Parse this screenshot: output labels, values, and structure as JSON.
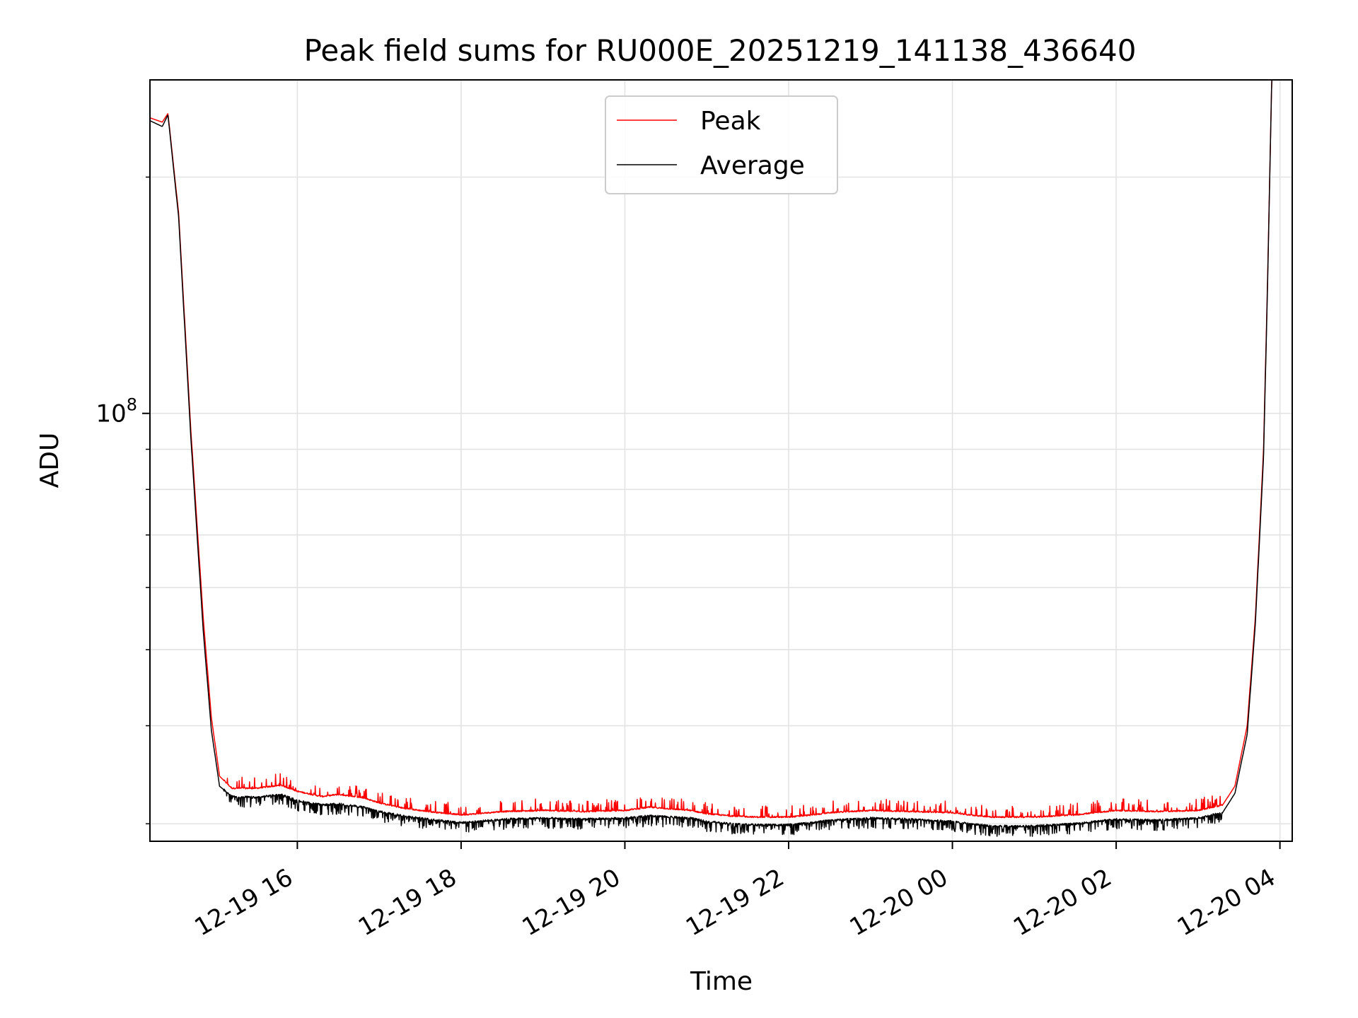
{
  "chart_data": {
    "type": "line",
    "title": "Peak field sums for RU000E_20251219_141138_436640",
    "xlabel": "Time",
    "ylabel": "ADU",
    "yscale": "log",
    "ylim": [
      28500000,
      266000000
    ],
    "xlim_hours": [
      14.2,
      28.15
    ],
    "x_ticks": [
      {
        "label": "12-19 16",
        "hour": 16
      },
      {
        "label": "12-19 18",
        "hour": 18
      },
      {
        "label": "12-19 20",
        "hour": 20
      },
      {
        "label": "12-19 22",
        "hour": 22
      },
      {
        "label": "12-20 00",
        "hour": 24
      },
      {
        "label": "12-20 02",
        "hour": 26
      },
      {
        "label": "12-20 04",
        "hour": 28
      }
    ],
    "y_major_tick": {
      "base": "10",
      "exp": "8",
      "value": 100000000
    },
    "y_minor_ticks": [
      30000000,
      40000000,
      50000000,
      60000000,
      70000000,
      80000000,
      90000000,
      200000000
    ],
    "grid": true,
    "legend_position": "upper-center",
    "series": [
      {
        "name": "Peak",
        "color": "#ff0000",
        "hours": [
          14.2,
          14.35,
          14.42,
          14.55,
          14.7,
          14.85,
          14.95,
          15.05,
          15.2,
          15.5,
          15.8,
          16.0,
          16.3,
          16.5,
          16.8,
          17.0,
          17.3,
          17.6,
          18.0,
          18.2,
          18.5,
          19.0,
          19.5,
          20.0,
          20.3,
          20.8,
          21.0,
          21.3,
          21.6,
          22.0,
          22.3,
          22.5,
          23.0,
          23.5,
          24.0,
          24.2,
          24.5,
          25.0,
          25.5,
          26.0,
          26.5,
          27.0,
          27.3,
          27.45,
          27.6,
          27.7,
          27.8,
          27.85,
          27.9
        ],
        "values": [
          238000000,
          235000000,
          241000000,
          180000000,
          95000000,
          55000000,
          41000000,
          34500000,
          33300000,
          33300000,
          33600000,
          33000000,
          32500000,
          32700000,
          32400000,
          31900000,
          31400000,
          31100000,
          30800000,
          30900000,
          31100000,
          31200000,
          31100000,
          31200000,
          31500000,
          31200000,
          30900000,
          30700000,
          30600000,
          30600000,
          30800000,
          31000000,
          31200000,
          31100000,
          31000000,
          30800000,
          30600000,
          30600000,
          30800000,
          31200000,
          31100000,
          31200000,
          31700000,
          33500000,
          40000000,
          55000000,
          90000000,
          150000000,
          266000000
        ]
      },
      {
        "name": "Average",
        "color": "#000000",
        "hours": [
          14.2,
          14.35,
          14.42,
          14.55,
          14.7,
          14.85,
          14.95,
          15.05,
          15.2,
          15.5,
          15.8,
          16.0,
          16.3,
          16.5,
          16.8,
          17.0,
          17.3,
          17.6,
          18.0,
          18.2,
          18.5,
          19.0,
          19.5,
          20.0,
          20.3,
          20.8,
          21.0,
          21.3,
          21.6,
          22.0,
          22.3,
          22.5,
          23.0,
          23.5,
          24.0,
          24.2,
          24.5,
          25.0,
          25.5,
          26.0,
          26.5,
          27.0,
          27.3,
          27.45,
          27.6,
          27.7,
          27.8,
          27.85,
          27.9
        ],
        "values": [
          236000000,
          232000000,
          240000000,
          178000000,
          93000000,
          53000000,
          39500000,
          33500000,
          32500000,
          32400000,
          32700000,
          32100000,
          31700000,
          31800000,
          31500000,
          31100000,
          30700000,
          30400000,
          30100000,
          30200000,
          30400000,
          30500000,
          30400000,
          30500000,
          30700000,
          30500000,
          30200000,
          30000000,
          29900000,
          29900000,
          30100000,
          30300000,
          30500000,
          30400000,
          30200000,
          30000000,
          29800000,
          29800000,
          30000000,
          30400000,
          30300000,
          30500000,
          31000000,
          32800000,
          39000000,
          54000000,
          88000000,
          148000000,
          266000000
        ]
      }
    ]
  }
}
